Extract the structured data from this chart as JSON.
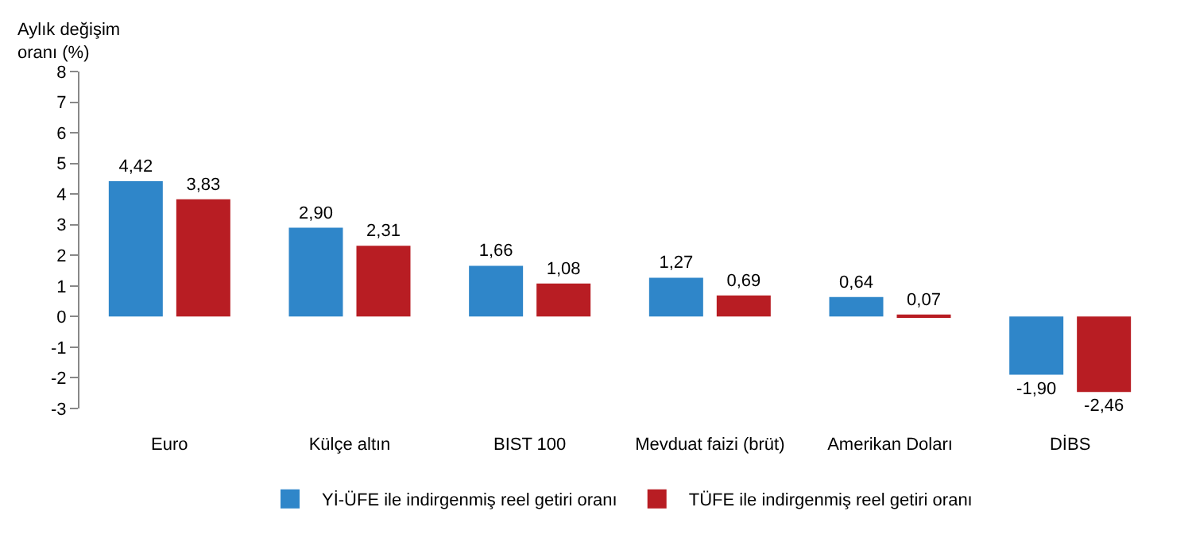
{
  "chart_data": {
    "type": "bar",
    "ylabel": "Aylık değişim\noranı (%)",
    "categories": [
      "Euro",
      "Külçe altın",
      "BIST 100",
      "Mevduat faizi (brüt)",
      "Amerikan Doları",
      "DİBS"
    ],
    "series": [
      {
        "name": "Yİ-ÜFE ile indirgenmiş reel getiri oranı",
        "color": "#2f86c9",
        "values": [
          4.42,
          2.9,
          1.66,
          1.27,
          0.64,
          -1.9
        ],
        "value_labels": [
          "4,42",
          "2,90",
          "1,66",
          "1,27",
          "0,64",
          "-1,90"
        ]
      },
      {
        "name": "TÜFE ile indirgenmiş reel getiri oranı",
        "color": "#b81d23",
        "values": [
          3.83,
          2.31,
          1.08,
          0.69,
          0.07,
          -2.46
        ],
        "value_labels": [
          "3,83",
          "2,31",
          "1,08",
          "0,69",
          "0,07",
          "-2,46"
        ]
      }
    ],
    "ylim": [
      -3,
      8
    ],
    "yticks": [
      -3,
      -2,
      -1,
      0,
      1,
      2,
      3,
      4,
      5,
      6,
      7,
      8
    ],
    "grid": false,
    "legend": "bottom"
  }
}
